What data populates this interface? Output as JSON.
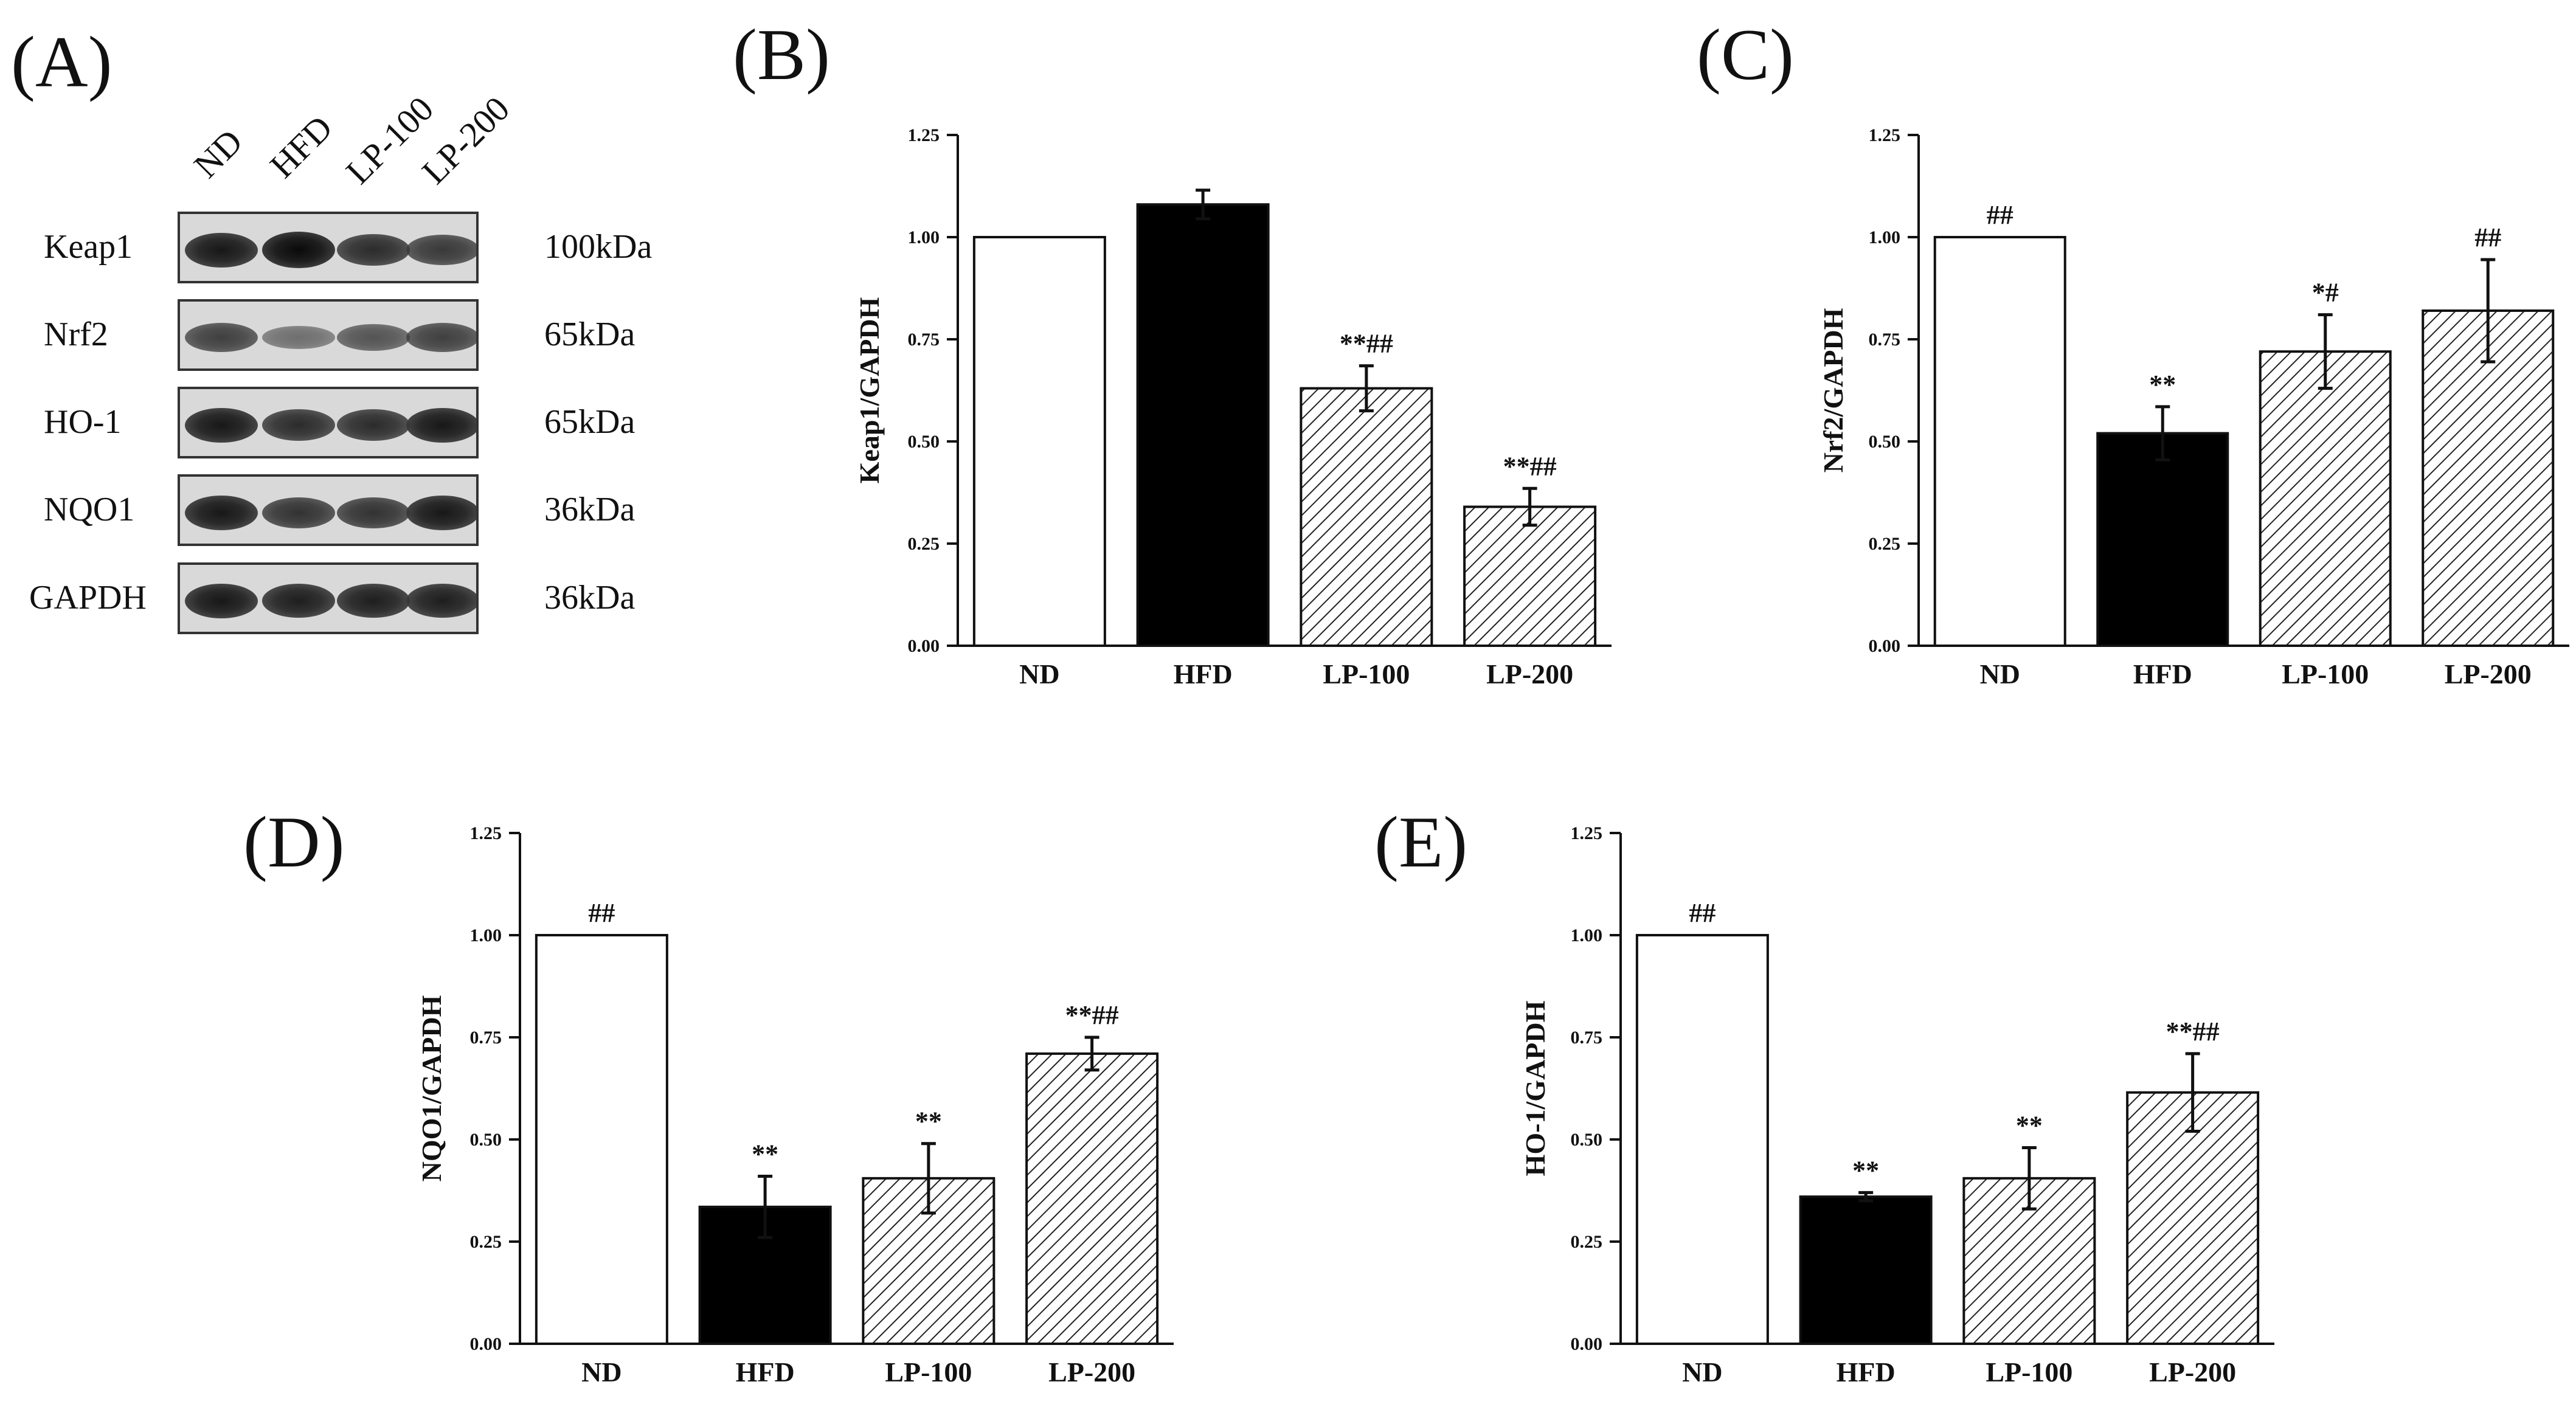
{
  "panel_a": {
    "letter": "(A)",
    "lanes": [
      "ND",
      "HFD",
      "LP-100",
      "LP-200"
    ],
    "rows": [
      {
        "protein": "Keap1",
        "size": "100kDa",
        "intensity": [
          0.9,
          1.0,
          0.75,
          0.65
        ]
      },
      {
        "protein": "Nrf2",
        "size": "65kDa",
        "intensity": [
          0.6,
          0.25,
          0.45,
          0.6
        ]
      },
      {
        "protein": "HO-1",
        "size": "65kDa",
        "intensity": [
          0.9,
          0.75,
          0.75,
          0.9
        ]
      },
      {
        "protein": "NQO1",
        "size": "36kDa",
        "intensity": [
          0.9,
          0.7,
          0.7,
          0.9
        ]
      },
      {
        "protein": "GAPDH",
        "size": "36kDa",
        "intensity": [
          0.9,
          0.85,
          0.85,
          0.85
        ]
      }
    ]
  },
  "chart_data": [
    {
      "letter": "(B)",
      "type": "bar",
      "categories": [
        "ND",
        "HFD",
        "LP-100",
        "LP-200"
      ],
      "values": [
        1.0,
        1.08,
        0.63,
        0.34
      ],
      "errors": [
        0,
        0.035,
        0.055,
        0.045
      ],
      "annotations": [
        "",
        "",
        "**##",
        "**##"
      ],
      "ylabel": "Keap1/GAPDH",
      "ylim": [
        0,
        1.25
      ],
      "yticks": [
        "0.00",
        "0.25",
        "0.50",
        "0.75",
        "1.00",
        "1.25"
      ],
      "fills": [
        "white",
        "black",
        "hatch",
        "hatch"
      ]
    },
    {
      "letter": "(C)",
      "type": "bar",
      "categories": [
        "ND",
        "HFD",
        "LP-100",
        "LP-200"
      ],
      "values": [
        1.0,
        0.52,
        0.72,
        0.82
      ],
      "errors": [
        0,
        0.065,
        0.09,
        0.125
      ],
      "annotations": [
        "##",
        "**",
        "*#",
        "##"
      ],
      "ylabel": "Nrf2/GAPDH",
      "ylim": [
        0,
        1.25
      ],
      "yticks": [
        "0.00",
        "0.25",
        "0.50",
        "0.75",
        "1.00",
        "1.25"
      ],
      "fills": [
        "white",
        "black",
        "hatch",
        "hatch"
      ]
    },
    {
      "letter": "(D)",
      "type": "bar",
      "categories": [
        "ND",
        "HFD",
        "LP-100",
        "LP-200"
      ],
      "values": [
        1.0,
        0.335,
        0.405,
        0.71
      ],
      "errors": [
        0,
        0.075,
        0.085,
        0.04
      ],
      "annotations": [
        "##",
        "**",
        "**",
        "**##"
      ],
      "ylabel": "NQO1/GAPDH",
      "ylim": [
        0,
        1.25
      ],
      "yticks": [
        "0.00",
        "0.25",
        "0.50",
        "0.75",
        "1.00",
        "1.25"
      ],
      "fills": [
        "white",
        "black",
        "hatch",
        "hatch"
      ]
    },
    {
      "letter": "(E)",
      "type": "bar",
      "categories": [
        "ND",
        "HFD",
        "LP-100",
        "LP-200"
      ],
      "values": [
        1.0,
        0.36,
        0.405,
        0.615
      ],
      "errors": [
        0,
        0.01,
        0.075,
        0.095
      ],
      "annotations": [
        "##",
        "**",
        "**",
        "**##"
      ],
      "ylabel": "HO-1/GAPDH",
      "ylim": [
        0,
        1.25
      ],
      "yticks": [
        "0.00",
        "0.25",
        "0.50",
        "0.75",
        "1.00",
        "1.25"
      ],
      "fills": [
        "white",
        "black",
        "hatch",
        "hatch"
      ]
    }
  ]
}
